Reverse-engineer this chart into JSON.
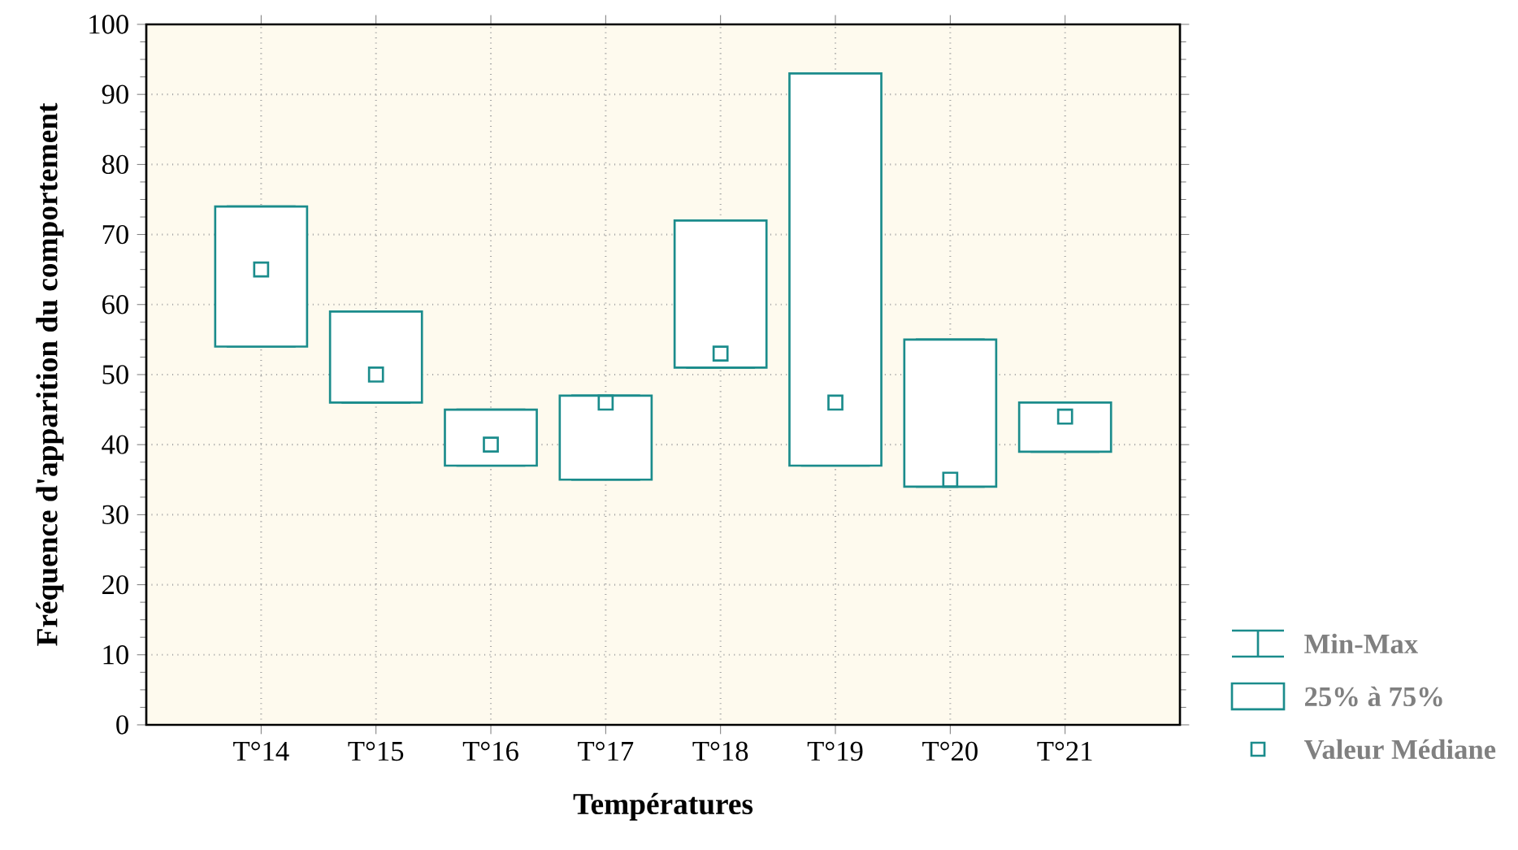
{
  "chart_data": {
    "type": "box",
    "xlabel": "Températures",
    "ylabel": "Fréquence d'apparition du comportement",
    "categories": [
      "T°14",
      "T°15",
      "T°16",
      "T°17",
      "T°18",
      "T°19",
      "T°20",
      "T°21"
    ],
    "boxes": [
      {
        "low": 54,
        "q1": 54,
        "median": 65,
        "q3": 74,
        "high": 74
      },
      {
        "low": 46,
        "q1": 46,
        "median": 50,
        "q3": 59,
        "high": 59
      },
      {
        "low": 37,
        "q1": 37,
        "median": 40,
        "q3": 45,
        "high": 45
      },
      {
        "low": 35,
        "q1": 35,
        "median": 46,
        "q3": 47,
        "high": 47
      },
      {
        "low": 51,
        "q1": 51,
        "median": 53,
        "q3": 72,
        "high": 72
      },
      {
        "low": 37,
        "q1": 37,
        "median": 46,
        "q3": 93,
        "high": 93
      },
      {
        "low": 34,
        "q1": 34,
        "median": 35,
        "q3": 55,
        "high": 55
      },
      {
        "low": 39,
        "q1": 39,
        "median": 44,
        "q3": 46,
        "high": 46
      }
    ],
    "color": "#1b8c8c",
    "ylim": [
      0,
      100
    ],
    "yticks": [
      0,
      10,
      20,
      30,
      40,
      50,
      60,
      70,
      80,
      90,
      100
    ],
    "grid": true,
    "marker": "square",
    "annotations": [
      "Min-Max",
      "25% à 75%",
      "Valeur Médiane"
    ]
  }
}
